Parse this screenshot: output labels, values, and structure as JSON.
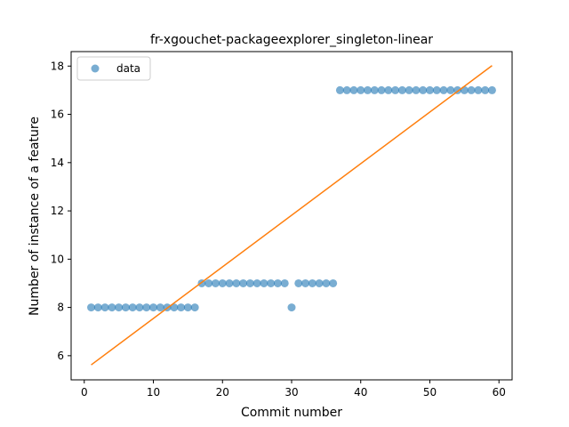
{
  "chart_data": {
    "type": "scatter",
    "title": "fr-xgouchet-packageexplorer_singleton-linear",
    "xlabel": "Commit number",
    "ylabel": "Number of instance of a feature",
    "xlim": [
      -1.9,
      61.9
    ],
    "ylim": [
      5.0,
      18.6
    ],
    "xticks": [
      "0",
      "10",
      "20",
      "30",
      "40",
      "50",
      "60"
    ],
    "yticks": [
      "6",
      "8",
      "10",
      "12",
      "14",
      "16",
      "18"
    ],
    "xtick_values": [
      0,
      10,
      20,
      30,
      40,
      50,
      60
    ],
    "ytick_values": [
      6,
      8,
      10,
      12,
      14,
      16,
      18
    ],
    "grid": false,
    "legend": {
      "placement": "upper-left",
      "entries": [
        "data"
      ]
    },
    "series": [
      {
        "name": "data",
        "kind": "scatter",
        "color": "#1f77b4",
        "x": [
          1,
          2,
          3,
          4,
          5,
          6,
          7,
          8,
          9,
          10,
          11,
          12,
          13,
          14,
          15,
          16,
          17,
          18,
          19,
          20,
          21,
          22,
          23,
          24,
          25,
          26,
          27,
          28,
          29,
          30,
          31,
          32,
          33,
          34,
          35,
          36,
          37,
          38,
          39,
          40,
          41,
          42,
          43,
          44,
          45,
          46,
          47,
          48,
          49,
          50,
          51,
          52,
          53,
          54,
          55,
          56,
          57,
          58,
          59
        ],
        "y": [
          8,
          8,
          8,
          8,
          8,
          8,
          8,
          8,
          8,
          8,
          8,
          8,
          8,
          8,
          8,
          8,
          9,
          9,
          9,
          9,
          9,
          9,
          9,
          9,
          9,
          9,
          9,
          9,
          9,
          8,
          9,
          9,
          9,
          9,
          9,
          9,
          17,
          17,
          17,
          17,
          17,
          17,
          17,
          17,
          17,
          17,
          17,
          17,
          17,
          17,
          17,
          17,
          17,
          17,
          17,
          17,
          17,
          17,
          17
        ]
      },
      {
        "kind": "line",
        "color": "#ff7f0e",
        "x": [
          1,
          59
        ],
        "y": [
          5.62,
          18.02
        ]
      }
    ]
  }
}
